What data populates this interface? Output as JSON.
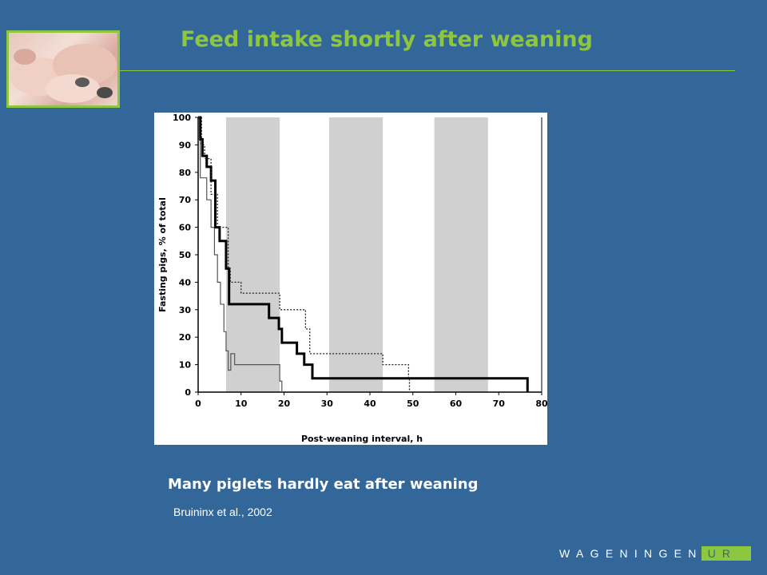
{
  "slide": {
    "title": "Feed intake shortly after weaning",
    "caption": "Many piglets hardly eat after weaning",
    "citation": "Bruininx et al., 2002",
    "logo_main": "WAGENINGEN",
    "logo_suffix": "UR"
  },
  "colors": {
    "background": "#33679a",
    "accent": "#8dc63f",
    "text": "#ffffff"
  },
  "chart_data": {
    "type": "line",
    "title": "",
    "xlabel": "Post-weaning interval, h",
    "ylabel": "Fasting pigs, % of total",
    "xlim": [
      0,
      80
    ],
    "ylim": [
      0,
      100
    ],
    "xticks": [
      "0",
      "10",
      "20",
      "30",
      "40",
      "50",
      "60",
      "70",
      "80"
    ],
    "yticks": [
      "0",
      "10",
      "20",
      "30",
      "40",
      "50",
      "60",
      "70",
      "80",
      "90",
      "100"
    ],
    "grid": false,
    "shaded_x_ranges": [
      [
        6.5,
        19
      ],
      [
        30.5,
        43
      ],
      [
        55,
        67.5
      ]
    ],
    "series": [
      {
        "style": "thin",
        "x": [
          0,
          0.5,
          1.2,
          2,
          3,
          3.8,
          4.5,
          5.2,
          6,
          6.5,
          7,
          7.6,
          8.5,
          19,
          19.5
        ],
        "y": [
          100,
          78,
          78,
          70,
          60,
          50,
          40,
          32,
          22,
          15,
          8,
          14,
          10,
          4,
          0
        ]
      },
      {
        "style": "thick",
        "x": [
          0,
          0.5,
          1,
          2,
          3,
          4,
          5,
          6.5,
          7.2,
          16.5,
          18.8,
          19.5,
          23,
          24.7,
          26.6,
          28,
          76.5,
          76.7
        ],
        "y": [
          100,
          92,
          86,
          82,
          77,
          60,
          55,
          45,
          32,
          27,
          23,
          18,
          14,
          10,
          5,
          5,
          5,
          0
        ]
      },
      {
        "style": "dotted",
        "x": [
          0,
          0.8,
          1.5,
          3,
          4.5,
          7,
          7.5,
          10,
          19,
          25,
          26,
          43,
          49,
          49.2
        ],
        "y": [
          100,
          90,
          85,
          72,
          60,
          45,
          40,
          36,
          30,
          23,
          14,
          10,
          5,
          0
        ]
      }
    ]
  }
}
